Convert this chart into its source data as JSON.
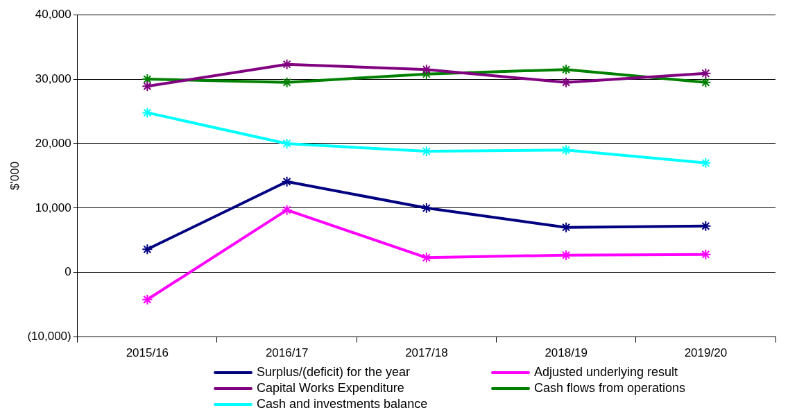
{
  "chart_data": {
    "type": "line",
    "ylabel": "$'000",
    "categories": [
      "2015/16",
      "2016/17",
      "2017/18",
      "2018/19",
      "2019/20"
    ],
    "ylim": [
      -10000,
      40000
    ],
    "yticks": [
      {
        "value": -10000,
        "label": "(10,000)"
      },
      {
        "value": 0,
        "label": "0"
      },
      {
        "value": 10000,
        "label": "10,000"
      },
      {
        "value": 20000,
        "label": "20,000"
      },
      {
        "value": 30000,
        "label": "30,000"
      },
      {
        "value": 40000,
        "label": "40,000"
      }
    ],
    "grid": "y",
    "legend": "bottom",
    "marker": "cross",
    "line_style": "solid",
    "series": [
      {
        "name": "Surplus/(deficit) for the year",
        "color": "#000080",
        "values": [
          3600,
          14100,
          10000,
          7000,
          7200
        ]
      },
      {
        "name": "Adjusted underlying result",
        "color": "#ff00ff",
        "values": [
          -4200,
          9700,
          2300,
          2700,
          2800
        ]
      },
      {
        "name": "Capital Works Expenditure",
        "color": "#800080",
        "values": [
          28900,
          32300,
          31500,
          29500,
          30900
        ]
      },
      {
        "name": "Cash flows from operations",
        "color": "#008000",
        "values": [
          30000,
          29500,
          30800,
          31500,
          29500
        ]
      },
      {
        "name": "Cash and investments balance",
        "color": "#00ffff",
        "values": [
          24800,
          20000,
          18800,
          19000,
          17000
        ]
      }
    ]
  }
}
